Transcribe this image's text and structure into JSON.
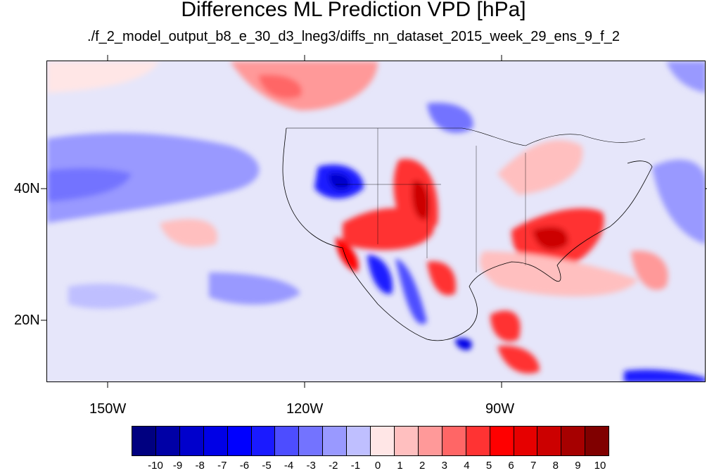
{
  "title": "Differences ML Prediction VPD [hPa]",
  "subtitle": "./f_2_model_output_b8_e_30_d3_lneg3/diffs_nn_dataset_2015_week_29_ens_9_f_2",
  "map": {
    "lat_labels": [
      "40N",
      "20N"
    ],
    "lon_labels": [
      "150W",
      "120W",
      "90W"
    ]
  },
  "colorbar": {
    "labels": [
      "-10",
      "-9",
      "-8",
      "-7",
      "-6",
      "-5",
      "-4",
      "-3",
      "-2",
      "-1",
      "0",
      "1",
      "2",
      "3",
      "4",
      "5",
      "6",
      "7",
      "8",
      "9",
      "10"
    ],
    "colors": [
      "#000080",
      "#0000a6",
      "#0000cc",
      "#0000e6",
      "#0000ff",
      "#1a1aff",
      "#4d4dff",
      "#7373ff",
      "#9999ff",
      "#bfbfff",
      "#e6e6fa",
      "#ffe6e6",
      "#ffbfbf",
      "#ff9999",
      "#ff6666",
      "#ff3333",
      "#ff0000",
      "#e60000",
      "#cc0000",
      "#a60000",
      "#800000"
    ]
  }
}
